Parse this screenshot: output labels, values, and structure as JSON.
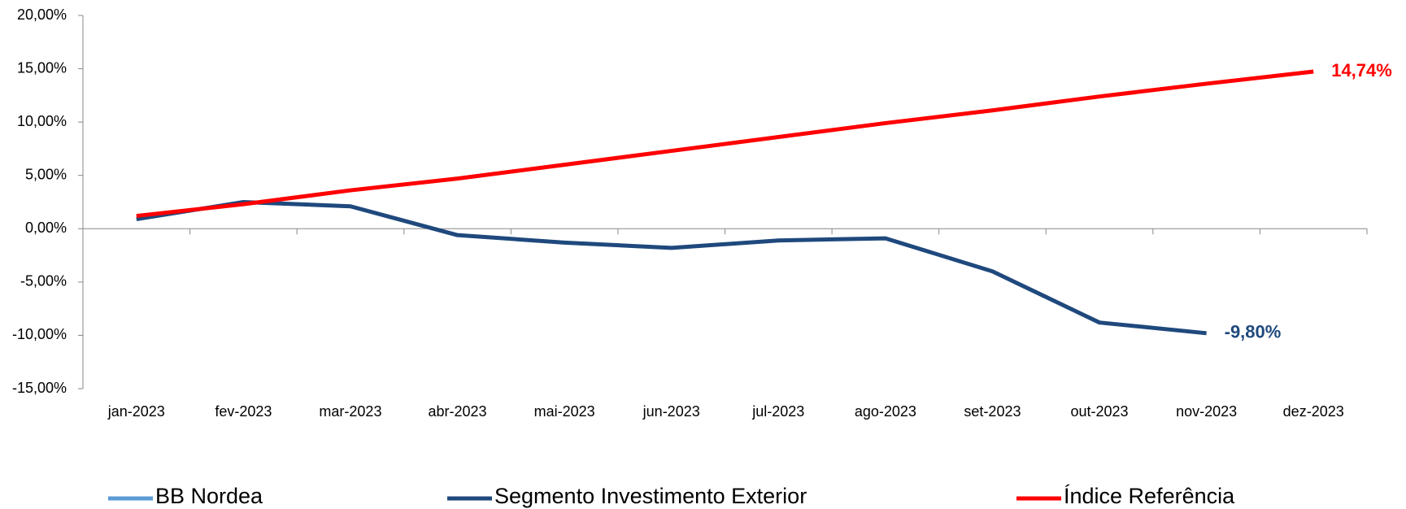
{
  "chart_data": {
    "type": "line",
    "categories": [
      "jan-2023",
      "fev-2023",
      "mar-2023",
      "abr-2023",
      "mai-2023",
      "jun-2023",
      "jul-2023",
      "ago-2023",
      "set-2023",
      "out-2023",
      "nov-2023",
      "dez-2023"
    ],
    "series": [
      {
        "name": "BB Nordea",
        "color": "#5b9bd5",
        "values": [
          null,
          null,
          null,
          null,
          null,
          null,
          null,
          null,
          null,
          null,
          null,
          null
        ]
      },
      {
        "name": "Segmento Investimento Exterior",
        "color": "#1f497d",
        "values": [
          0.9,
          2.5,
          2.1,
          -0.6,
          -1.3,
          -1.8,
          -1.1,
          -0.9,
          -4.0,
          -8.8,
          -9.8,
          null
        ],
        "value_labels": [
          null,
          null,
          null,
          null,
          null,
          null,
          null,
          null,
          null,
          null,
          "-9,80%",
          null
        ]
      },
      {
        "name": "Índice Referência",
        "color": "#ff0000",
        "values": [
          1.2,
          2.3,
          3.6,
          4.7,
          6.0,
          7.3,
          8.6,
          9.9,
          11.1,
          12.4,
          13.6,
          14.74
        ],
        "value_labels": [
          null,
          null,
          null,
          null,
          null,
          null,
          null,
          null,
          null,
          null,
          null,
          "14,74%"
        ]
      }
    ],
    "ylim": [
      -15,
      20
    ],
    "yticks": [
      {
        "value": -15,
        "label": "-15,00%"
      },
      {
        "value": -10,
        "label": "-10,00%"
      },
      {
        "value": -5,
        "label": "-5,00%"
      },
      {
        "value": 0,
        "label": "0,00%"
      },
      {
        "value": 5,
        "label": "5,00%"
      },
      {
        "value": 10,
        "label": "10,00%"
      },
      {
        "value": 15,
        "label": "15,00%"
      },
      {
        "value": 20,
        "label": "20,00%"
      }
    ],
    "grid": false
  }
}
